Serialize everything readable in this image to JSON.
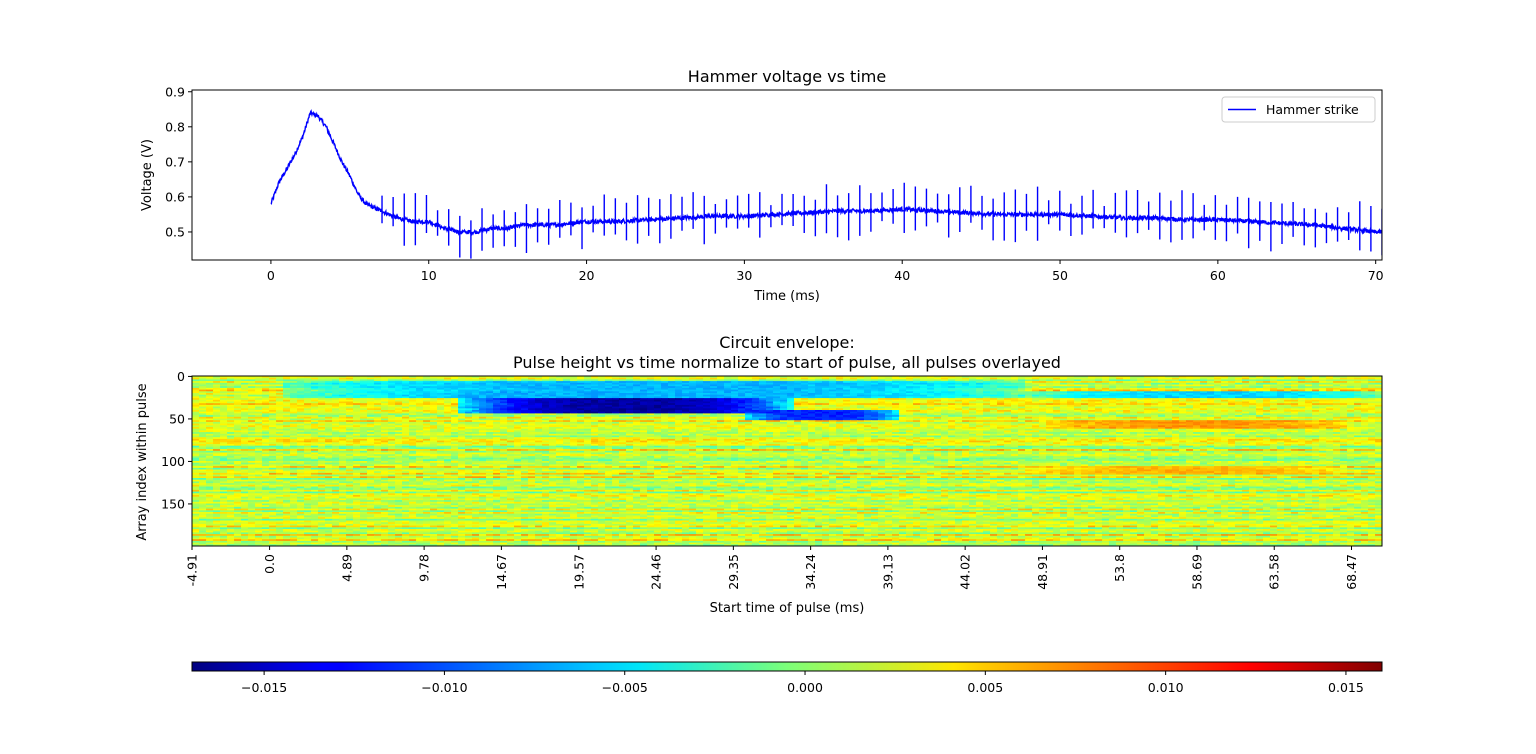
{
  "chart_data": [
    {
      "type": "line",
      "title": "Hammer voltage vs time",
      "xlabel": "Time (ms)",
      "ylabel": "Voltage (V)",
      "xlim": [
        -5,
        70.4
      ],
      "ylim": [
        0.42,
        0.905
      ],
      "x_ticks": [
        0,
        10,
        20,
        30,
        40,
        50,
        60,
        70
      ],
      "y_ticks": [
        0.5,
        0.6,
        0.7,
        0.8,
        0.9
      ],
      "x_tick_labels": [
        "0",
        "10",
        "20",
        "30",
        "40",
        "50",
        "60",
        "70"
      ],
      "y_tick_labels": [
        "0.5",
        "0.6",
        "0.7",
        "0.8",
        "0.9"
      ],
      "grid": false,
      "legend": {
        "position": "top-right",
        "entries": [
          "Hammer strike"
        ]
      },
      "series": [
        {
          "name": "Hammer strike",
          "color": "#0000ff",
          "x": [
            0,
            0.5,
            1,
            1.5,
            2,
            2.5,
            3,
            3.5,
            4,
            4.5,
            5,
            5.5,
            6,
            6.5,
            7,
            7.5,
            8,
            9,
            10,
            11,
            12,
            13,
            14,
            15,
            16,
            18,
            20,
            22,
            24,
            26,
            28,
            30,
            32,
            34,
            36,
            38,
            40,
            42,
            44,
            46,
            48,
            50,
            52,
            54,
            56,
            58,
            60,
            62,
            64,
            66,
            68,
            70,
            70.4
          ],
          "y": [
            0.58,
            0.64,
            0.68,
            0.72,
            0.77,
            0.84,
            0.83,
            0.8,
            0.75,
            0.7,
            0.66,
            0.61,
            0.58,
            0.57,
            0.56,
            0.55,
            0.54,
            0.53,
            0.53,
            0.51,
            0.5,
            0.5,
            0.51,
            0.51,
            0.52,
            0.52,
            0.53,
            0.53,
            0.535,
            0.54,
            0.545,
            0.545,
            0.55,
            0.555,
            0.56,
            0.56,
            0.565,
            0.56,
            0.555,
            0.55,
            0.55,
            0.55,
            0.545,
            0.54,
            0.54,
            0.535,
            0.535,
            0.53,
            0.525,
            0.52,
            0.51,
            0.5,
            0.5
          ]
        }
      ]
    },
    {
      "type": "heatmap",
      "title": "Circuit envelope:\nPulse height vs time normalize to start of pulse, all pulses overlayed",
      "title_lines": [
        "Circuit envelope:",
        "Pulse height vs time normalize to start of pulse, all pulses overlayed"
      ],
      "xlabel": "Start time of pulse (ms)",
      "ylabel": "Array index within pulse",
      "x_tick_labels": [
        "-4.91",
        "0.0",
        "4.89",
        "9.78",
        "14.67",
        "19.57",
        "24.46",
        "29.35",
        "34.24",
        "39.13",
        "44.02",
        "48.91",
        "53.8",
        "58.69",
        "63.58",
        "68.47"
      ],
      "y_ticks": [
        0,
        50,
        100,
        150
      ],
      "y_tick_labels": [
        "0",
        "50",
        "100",
        "150"
      ],
      "rows": 200,
      "time_range_ms": [
        -4.91,
        70.4
      ],
      "colormap": "jet",
      "colorbar": {
        "range": [
          -0.017,
          0.016
        ],
        "ticks": [
          -0.015,
          -0.01,
          -0.005,
          0.0,
          0.005,
          0.01,
          0.015
        ],
        "tick_labels": [
          "−0.015",
          "−0.010",
          "−0.005",
          "0.000",
          "0.005",
          "0.010",
          "0.015"
        ],
        "orientation": "horizontal"
      },
      "features": [
        {
          "rows": [
            18,
            42
          ],
          "time_ms": [
            12,
            33
          ],
          "value": -0.016
        },
        {
          "rows": [
            40,
            50
          ],
          "time_ms": [
            30,
            40
          ],
          "value": -0.012
        },
        {
          "rows": [
            5,
            25
          ],
          "time_ms": [
            1,
            48
          ],
          "value": -0.007
        },
        {
          "rows": [
            18,
            25
          ],
          "time_ms": [
            48,
            70.4
          ],
          "value": -0.006
        },
        {
          "rows": [
            52,
            60
          ],
          "time_ms": [
            49,
            68
          ],
          "value": 0.007
        },
        {
          "rows": [
            105,
            115
          ],
          "time_ms": [
            48,
            68
          ],
          "value": 0.006
        }
      ]
    }
  ]
}
